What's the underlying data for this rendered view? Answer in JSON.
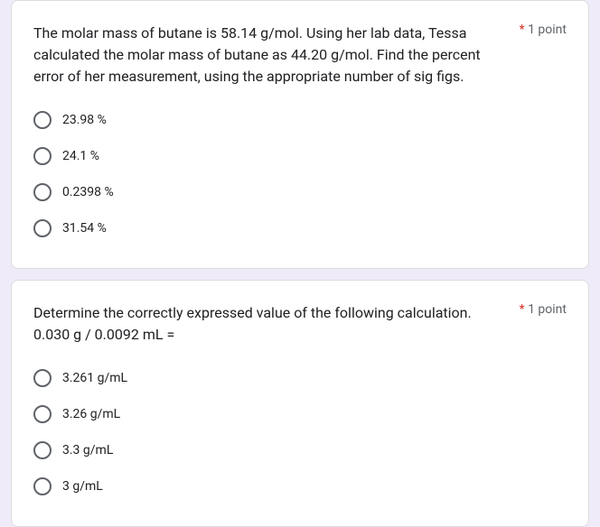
{
  "colors": {
    "page_bg": "#f0ebf8",
    "card_bg": "#ffffff",
    "card_border": "#dadce0",
    "text_primary": "#202124",
    "text_secondary": "#5f6368",
    "required": "#d93025",
    "radio_border": "#5f6368"
  },
  "typography": {
    "question_fontsize": 16,
    "option_fontsize": 14,
    "points_fontsize": 14
  },
  "questions": [
    {
      "text": "The molar mass of butane is 58.14 g/mol.  Using her lab data, Tessa calculated the molar mass of butane as 44.20 g/mol.  Find the percent error of her measurement, using the appropriate number of sig figs.",
      "required": "*",
      "points": "1 point",
      "options": [
        "23.98 %",
        "24.1 %",
        "0.2398 %",
        "31.54 %"
      ]
    },
    {
      "text": "Determine the correctly expressed value of the following calculation.   0.030 g / 0.0092 mL =",
      "required": "*",
      "points": "1 point",
      "options": [
        "3.261 g/mL",
        "3.26 g/mL",
        "3.3 g/mL",
        "3 g/mL"
      ]
    }
  ]
}
